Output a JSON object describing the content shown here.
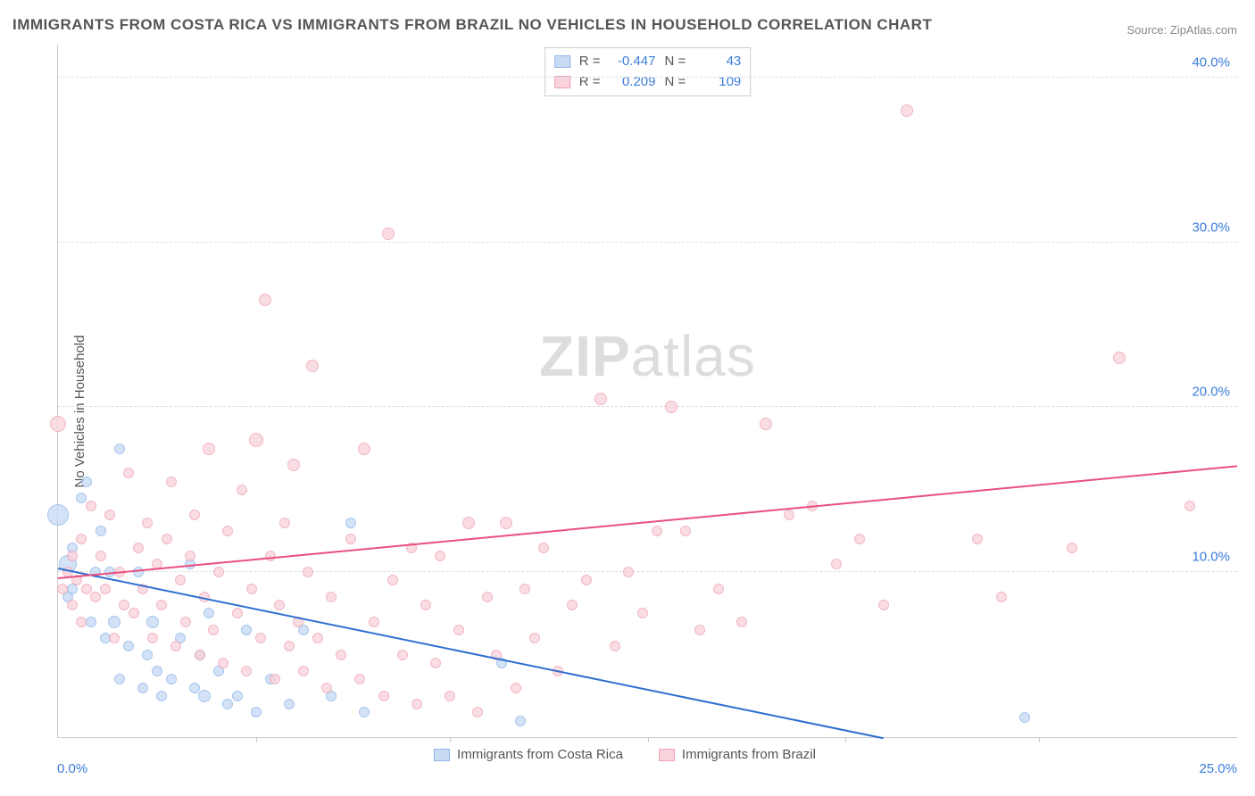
{
  "title": "IMMIGRANTS FROM COSTA RICA VS IMMIGRANTS FROM BRAZIL NO VEHICLES IN HOUSEHOLD CORRELATION CHART",
  "source": "Source: ZipAtlas.com",
  "y_axis_label": "No Vehicles in Household",
  "watermark_zip": "ZIP",
  "watermark_atlas": "atlas",
  "chart": {
    "type": "scatter",
    "xlim": [
      0,
      25
    ],
    "ylim": [
      0,
      42
    ],
    "x_ticks_major": [
      0.0,
      25.0
    ],
    "x_ticks_minor": [
      4.2,
      8.3,
      12.5,
      16.7,
      20.8
    ],
    "y_ticks": [
      10.0,
      20.0,
      30.0,
      40.0
    ],
    "grid_color": "#dddddd",
    "axis_color": "#cccccc",
    "background": "#ffffff"
  },
  "series": [
    {
      "name": "Immigrants from Costa Rica",
      "fill": "#c7dbf5",
      "stroke": "#8fb7e8",
      "trend_color": "#2f6fd0",
      "R": "-0.447",
      "N": "43",
      "trend": {
        "x1": 0,
        "y1": 10.3,
        "x2": 17.5,
        "y2": 0
      },
      "points": [
        {
          "x": 0.0,
          "y": 13.5,
          "r": 12
        },
        {
          "x": 0.2,
          "y": 8.5,
          "r": 6
        },
        {
          "x": 0.2,
          "y": 10.5,
          "r": 10
        },
        {
          "x": 0.3,
          "y": 9.0,
          "r": 6
        },
        {
          "x": 0.3,
          "y": 11.5,
          "r": 6
        },
        {
          "x": 0.5,
          "y": 14.5,
          "r": 6
        },
        {
          "x": 0.6,
          "y": 15.5,
          "r": 6
        },
        {
          "x": 0.7,
          "y": 7.0,
          "r": 6
        },
        {
          "x": 0.8,
          "y": 10.0,
          "r": 6
        },
        {
          "x": 0.9,
          "y": 12.5,
          "r": 6
        },
        {
          "x": 1.0,
          "y": 6.0,
          "r": 6
        },
        {
          "x": 1.1,
          "y": 10.0,
          "r": 6
        },
        {
          "x": 1.2,
          "y": 7.0,
          "r": 7
        },
        {
          "x": 1.3,
          "y": 17.5,
          "r": 6
        },
        {
          "x": 1.3,
          "y": 3.5,
          "r": 6
        },
        {
          "x": 1.5,
          "y": 5.5,
          "r": 6
        },
        {
          "x": 1.7,
          "y": 10.0,
          "r": 6
        },
        {
          "x": 1.8,
          "y": 3.0,
          "r": 6
        },
        {
          "x": 1.9,
          "y": 5.0,
          "r": 6
        },
        {
          "x": 2.0,
          "y": 7.0,
          "r": 7
        },
        {
          "x": 2.1,
          "y": 4.0,
          "r": 6
        },
        {
          "x": 2.2,
          "y": 2.5,
          "r": 6
        },
        {
          "x": 2.4,
          "y": 3.5,
          "r": 6
        },
        {
          "x": 2.6,
          "y": 6.0,
          "r": 6
        },
        {
          "x": 2.8,
          "y": 10.5,
          "r": 6
        },
        {
          "x": 2.9,
          "y": 3.0,
          "r": 6
        },
        {
          "x": 3.0,
          "y": 5.0,
          "r": 6
        },
        {
          "x": 3.1,
          "y": 2.5,
          "r": 7
        },
        {
          "x": 3.2,
          "y": 7.5,
          "r": 6
        },
        {
          "x": 3.4,
          "y": 4.0,
          "r": 6
        },
        {
          "x": 3.6,
          "y": 2.0,
          "r": 6
        },
        {
          "x": 3.8,
          "y": 2.5,
          "r": 6
        },
        {
          "x": 4.0,
          "y": 6.5,
          "r": 6
        },
        {
          "x": 4.2,
          "y": 1.5,
          "r": 6
        },
        {
          "x": 4.5,
          "y": 3.5,
          "r": 6
        },
        {
          "x": 4.9,
          "y": 2.0,
          "r": 6
        },
        {
          "x": 5.2,
          "y": 6.5,
          "r": 6
        },
        {
          "x": 5.8,
          "y": 2.5,
          "r": 6
        },
        {
          "x": 6.2,
          "y": 13.0,
          "r": 6
        },
        {
          "x": 6.5,
          "y": 1.5,
          "r": 6
        },
        {
          "x": 9.4,
          "y": 4.5,
          "r": 6
        },
        {
          "x": 9.8,
          "y": 1.0,
          "r": 6
        },
        {
          "x": 20.5,
          "y": 1.2,
          "r": 6
        }
      ]
    },
    {
      "name": "Immigrants from Brazil",
      "fill": "#f9d3dc",
      "stroke": "#eda4b6",
      "trend_color": "#e94f7f",
      "R": "0.209",
      "N": "109",
      "trend": {
        "x1": 0,
        "y1": 9.7,
        "x2": 25,
        "y2": 16.5
      },
      "points": [
        {
          "x": 0.0,
          "y": 19.0,
          "r": 9
        },
        {
          "x": 0.1,
          "y": 9.0,
          "r": 6
        },
        {
          "x": 0.2,
          "y": 10.0,
          "r": 6
        },
        {
          "x": 0.3,
          "y": 8.0,
          "r": 6
        },
        {
          "x": 0.3,
          "y": 11.0,
          "r": 6
        },
        {
          "x": 0.4,
          "y": 9.5,
          "r": 6
        },
        {
          "x": 0.5,
          "y": 12.0,
          "r": 6
        },
        {
          "x": 0.5,
          "y": 7.0,
          "r": 6
        },
        {
          "x": 0.6,
          "y": 9.0,
          "r": 6
        },
        {
          "x": 0.7,
          "y": 14.0,
          "r": 6
        },
        {
          "x": 0.8,
          "y": 8.5,
          "r": 6
        },
        {
          "x": 0.9,
          "y": 11.0,
          "r": 6
        },
        {
          "x": 1.0,
          "y": 9.0,
          "r": 6
        },
        {
          "x": 1.1,
          "y": 13.5,
          "r": 6
        },
        {
          "x": 1.2,
          "y": 6.0,
          "r": 6
        },
        {
          "x": 1.3,
          "y": 10.0,
          "r": 6
        },
        {
          "x": 1.4,
          "y": 8.0,
          "r": 6
        },
        {
          "x": 1.5,
          "y": 16.0,
          "r": 6
        },
        {
          "x": 1.6,
          "y": 7.5,
          "r": 6
        },
        {
          "x": 1.7,
          "y": 11.5,
          "r": 6
        },
        {
          "x": 1.8,
          "y": 9.0,
          "r": 6
        },
        {
          "x": 1.9,
          "y": 13.0,
          "r": 6
        },
        {
          "x": 2.0,
          "y": 6.0,
          "r": 6
        },
        {
          "x": 2.1,
          "y": 10.5,
          "r": 6
        },
        {
          "x": 2.2,
          "y": 8.0,
          "r": 6
        },
        {
          "x": 2.3,
          "y": 12.0,
          "r": 6
        },
        {
          "x": 2.4,
          "y": 15.5,
          "r": 6
        },
        {
          "x": 2.5,
          "y": 5.5,
          "r": 6
        },
        {
          "x": 2.6,
          "y": 9.5,
          "r": 6
        },
        {
          "x": 2.7,
          "y": 7.0,
          "r": 6
        },
        {
          "x": 2.8,
          "y": 11.0,
          "r": 6
        },
        {
          "x": 2.9,
          "y": 13.5,
          "r": 6
        },
        {
          "x": 3.0,
          "y": 5.0,
          "r": 6
        },
        {
          "x": 3.1,
          "y": 8.5,
          "r": 6
        },
        {
          "x": 3.2,
          "y": 17.5,
          "r": 7
        },
        {
          "x": 3.3,
          "y": 6.5,
          "r": 6
        },
        {
          "x": 3.4,
          "y": 10.0,
          "r": 6
        },
        {
          "x": 3.5,
          "y": 4.5,
          "r": 6
        },
        {
          "x": 3.6,
          "y": 12.5,
          "r": 6
        },
        {
          "x": 3.8,
          "y": 7.5,
          "r": 6
        },
        {
          "x": 3.9,
          "y": 15.0,
          "r": 6
        },
        {
          "x": 4.0,
          "y": 4.0,
          "r": 6
        },
        {
          "x": 4.1,
          "y": 9.0,
          "r": 6
        },
        {
          "x": 4.2,
          "y": 18.0,
          "r": 8
        },
        {
          "x": 4.3,
          "y": 6.0,
          "r": 6
        },
        {
          "x": 4.4,
          "y": 26.5,
          "r": 7
        },
        {
          "x": 4.5,
          "y": 11.0,
          "r": 6
        },
        {
          "x": 4.6,
          "y": 3.5,
          "r": 6
        },
        {
          "x": 4.7,
          "y": 8.0,
          "r": 6
        },
        {
          "x": 4.8,
          "y": 13.0,
          "r": 6
        },
        {
          "x": 4.9,
          "y": 5.5,
          "r": 6
        },
        {
          "x": 5.0,
          "y": 16.5,
          "r": 7
        },
        {
          "x": 5.1,
          "y": 7.0,
          "r": 6
        },
        {
          "x": 5.2,
          "y": 4.0,
          "r": 6
        },
        {
          "x": 5.3,
          "y": 10.0,
          "r": 6
        },
        {
          "x": 5.4,
          "y": 22.5,
          "r": 7
        },
        {
          "x": 5.5,
          "y": 6.0,
          "r": 6
        },
        {
          "x": 5.7,
          "y": 3.0,
          "r": 6
        },
        {
          "x": 5.8,
          "y": 8.5,
          "r": 6
        },
        {
          "x": 6.0,
          "y": 5.0,
          "r": 6
        },
        {
          "x": 6.2,
          "y": 12.0,
          "r": 6
        },
        {
          "x": 6.4,
          "y": 3.5,
          "r": 6
        },
        {
          "x": 6.5,
          "y": 17.5,
          "r": 7
        },
        {
          "x": 6.7,
          "y": 7.0,
          "r": 6
        },
        {
          "x": 6.9,
          "y": 2.5,
          "r": 6
        },
        {
          "x": 7.0,
          "y": 30.5,
          "r": 7
        },
        {
          "x": 7.1,
          "y": 9.5,
          "r": 6
        },
        {
          "x": 7.3,
          "y": 5.0,
          "r": 6
        },
        {
          "x": 7.5,
          "y": 11.5,
          "r": 6
        },
        {
          "x": 7.6,
          "y": 2.0,
          "r": 6
        },
        {
          "x": 7.8,
          "y": 8.0,
          "r": 6
        },
        {
          "x": 8.0,
          "y": 4.5,
          "r": 6
        },
        {
          "x": 8.1,
          "y": 11.0,
          "r": 6
        },
        {
          "x": 8.3,
          "y": 2.5,
          "r": 6
        },
        {
          "x": 8.5,
          "y": 6.5,
          "r": 6
        },
        {
          "x": 8.7,
          "y": 13.0,
          "r": 7
        },
        {
          "x": 8.9,
          "y": 1.5,
          "r": 6
        },
        {
          "x": 9.1,
          "y": 8.5,
          "r": 6
        },
        {
          "x": 9.3,
          "y": 5.0,
          "r": 6
        },
        {
          "x": 9.5,
          "y": 13.0,
          "r": 7
        },
        {
          "x": 9.7,
          "y": 3.0,
          "r": 6
        },
        {
          "x": 9.9,
          "y": 9.0,
          "r": 6
        },
        {
          "x": 10.1,
          "y": 6.0,
          "r": 6
        },
        {
          "x": 10.3,
          "y": 11.5,
          "r": 6
        },
        {
          "x": 10.6,
          "y": 4.0,
          "r": 6
        },
        {
          "x": 10.9,
          "y": 8.0,
          "r": 6
        },
        {
          "x": 11.2,
          "y": 9.5,
          "r": 6
        },
        {
          "x": 11.5,
          "y": 20.5,
          "r": 7
        },
        {
          "x": 11.8,
          "y": 5.5,
          "r": 6
        },
        {
          "x": 12.1,
          "y": 10.0,
          "r": 6
        },
        {
          "x": 12.4,
          "y": 7.5,
          "r": 6
        },
        {
          "x": 12.7,
          "y": 12.5,
          "r": 6
        },
        {
          "x": 13.0,
          "y": 20.0,
          "r": 7
        },
        {
          "x": 13.3,
          "y": 12.5,
          "r": 6
        },
        {
          "x": 13.6,
          "y": 6.5,
          "r": 6
        },
        {
          "x": 14.0,
          "y": 9.0,
          "r": 6
        },
        {
          "x": 14.5,
          "y": 7.0,
          "r": 6
        },
        {
          "x": 15.0,
          "y": 19.0,
          "r": 7
        },
        {
          "x": 15.5,
          "y": 13.5,
          "r": 6
        },
        {
          "x": 16.0,
          "y": 14.0,
          "r": 6
        },
        {
          "x": 16.5,
          "y": 10.5,
          "r": 6
        },
        {
          "x": 17.0,
          "y": 12.0,
          "r": 6
        },
        {
          "x": 17.5,
          "y": 8.0,
          "r": 6
        },
        {
          "x": 18.0,
          "y": 38.0,
          "r": 7
        },
        {
          "x": 19.5,
          "y": 12.0,
          "r": 6
        },
        {
          "x": 20.0,
          "y": 8.5,
          "r": 6
        },
        {
          "x": 21.5,
          "y": 11.5,
          "r": 6
        },
        {
          "x": 22.5,
          "y": 23.0,
          "r": 7
        },
        {
          "x": 24.0,
          "y": 14.0,
          "r": 6
        }
      ]
    }
  ],
  "legend": {
    "r_label": "R =",
    "n_label": "N ="
  },
  "x_label_0": "0.0%",
  "x_label_25": "25.0%"
}
